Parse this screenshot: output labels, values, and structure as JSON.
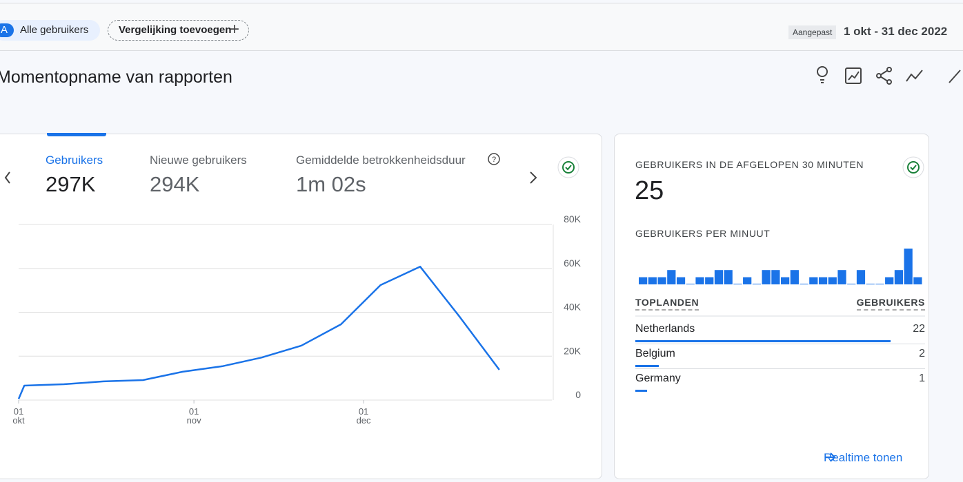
{
  "header": {
    "user_initial": "A",
    "user_chip": "Alle gebruikers",
    "compare_chip": "Vergelijking toevoegen",
    "date_label": "Aangepast",
    "date_range": "1 okt - 31 dec 2022"
  },
  "title": "Momentopname van rapporten",
  "metrics": [
    {
      "label": "Gebruikers",
      "value": "297K"
    },
    {
      "label": "Nieuwe gebruikers",
      "value": "294K"
    },
    {
      "label": "Gemiddelde betrokkenheidsduur",
      "value": "1m 02s"
    }
  ],
  "chart_data": [
    {
      "type": "line",
      "color": "#1a73e8",
      "x": [
        "2022-10-01",
        "2022-10-02",
        "2022-10-09",
        "2022-10-16",
        "2022-10-23",
        "2022-10-30",
        "2022-11-06",
        "2022-11-13",
        "2022-11-20",
        "2022-11-27",
        "2022-12-04",
        "2022-12-11",
        "2022-12-18",
        "2022-12-25"
      ],
      "values": [
        500,
        6600,
        7200,
        8500,
        9100,
        12900,
        15400,
        19400,
        24800,
        34500,
        52400,
        60800,
        37900,
        13800
      ],
      "xlim": [
        "2022-10-01",
        "2022-12-31"
      ],
      "xticks": [
        {
          "value": "2022-10-01",
          "label": "01 okt"
        },
        {
          "value": "2022-11-01",
          "label": "01 nov"
        },
        {
          "value": "2022-12-01",
          "label": "01 dec"
        }
      ],
      "ylim": [
        0,
        80000
      ],
      "yticks": [
        0,
        {
          "value": 20000,
          "label": "20K"
        },
        {
          "value": 40000,
          "label": "40K"
        },
        {
          "value": 60000,
          "label": "60K"
        },
        {
          "value": 80000,
          "label": "80K"
        }
      ],
      "grid": true
    },
    {
      "type": "bar",
      "title": "GEBRUIKERS PER MINUUT",
      "color": "#1a73e8",
      "values": [
        1,
        1,
        1,
        2,
        1,
        0,
        1,
        1,
        2,
        2,
        0,
        1,
        0,
        2,
        2,
        1,
        2,
        0,
        1,
        1,
        1,
        2,
        0,
        2,
        0,
        0,
        1,
        2,
        5,
        1
      ],
      "ylim": [
        0,
        5
      ]
    }
  ],
  "realtime": {
    "title": "GEBRUIKERS IN DE AFGELOPEN 30 MINUTEN",
    "value": 25,
    "columns": [
      "TOPLANDEN",
      "GEBRUIKERS"
    ],
    "rows": [
      {
        "name": "Netherlands",
        "value": 22
      },
      {
        "name": "Belgium",
        "value": 2
      },
      {
        "name": "Germany",
        "value": 1
      }
    ],
    "link": "Realtime tonen"
  }
}
